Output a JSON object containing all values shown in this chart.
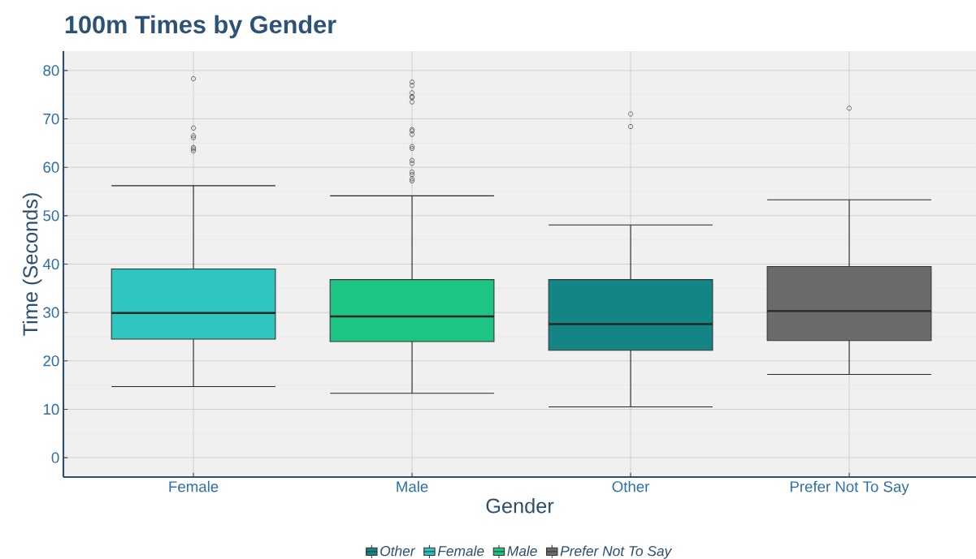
{
  "chart_data": {
    "type": "box",
    "title": "100m Times by Gender",
    "xlabel": "Gender",
    "ylabel": "Time (Seconds)",
    "categories": [
      "Female",
      "Male",
      "Other",
      "Prefer Not To Say"
    ],
    "ylim": [
      -4,
      84
    ],
    "yticks": [
      0,
      10,
      20,
      30,
      40,
      50,
      60,
      70,
      80
    ],
    "grid": true,
    "legend": "bottom",
    "series": [
      {
        "name": "Other",
        "color": "#138585",
        "boxes": [
          null,
          null,
          {
            "low": 10.5,
            "q1": 22.2,
            "median": 27.6,
            "q3": 36.8,
            "high": 48.1,
            "outliers": [
              71.0,
              68.4
            ]
          },
          null
        ]
      },
      {
        "name": "Female",
        "color": "#2ec4c0",
        "boxes": [
          {
            "low": 14.7,
            "q1": 24.5,
            "median": 29.9,
            "q3": 39.0,
            "high": 56.2,
            "outliers": [
              78.3,
              68.1,
              66.5,
              66.1,
              64.1,
              63.8,
              63.4
            ]
          },
          null,
          null,
          null
        ]
      },
      {
        "name": "Male",
        "color": "#1dc483",
        "boxes": [
          null,
          {
            "low": 13.3,
            "q1": 24.0,
            "median": 29.2,
            "q3": 36.8,
            "high": 54.1,
            "outliers": [
              77.6,
              76.9,
              75.4,
              74.6,
              74.4,
              73.5,
              67.8,
              67.5,
              66.8,
              64.3,
              63.9,
              61.4,
              60.8,
              59.0,
              58.5,
              57.6,
              57.2
            ]
          },
          null,
          null
        ]
      },
      {
        "name": "Prefer Not To Say",
        "color": "#6b6b6b",
        "boxes": [
          null,
          null,
          null,
          {
            "low": 17.2,
            "q1": 24.2,
            "median": 30.3,
            "q3": 39.5,
            "high": 53.3,
            "outliers": [
              72.2
            ]
          }
        ]
      }
    ]
  }
}
